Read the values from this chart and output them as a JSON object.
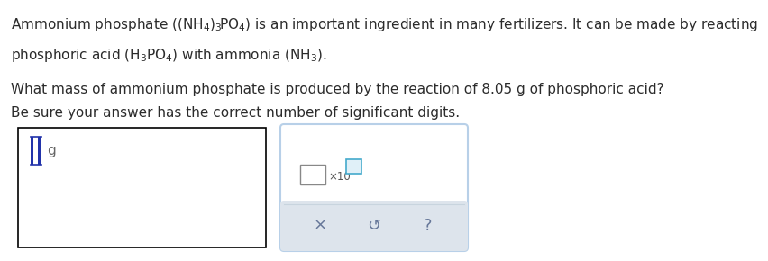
{
  "bg_color": "#ffffff",
  "text_color": "#2b2b2b",
  "font_size_main": 11.0,
  "line1": "Ammonium phosphate $\\left(\\left(\\mathrm{NH_4}\\right)_3\\!\\mathrm{PO_4}\\right)$ is an important ingredient in many fertilizers. It can be made by reacting",
  "line2": "phosphoric acid $\\left(\\mathrm{H_3PO_4}\\right)$ with ammonia $\\left(\\mathrm{NH_3}\\right)$.",
  "line3": "What mass of ammonium phosphate is produced by the reaction of 8.05 g of phosphoric acid?",
  "line4": "Be sure your answer has the correct number of significant digits.",
  "unit_label": "g",
  "input_box_color": "#000000",
  "cursor_color": "#2233aa",
  "right_panel_border": "#b8d0e8",
  "right_panel_bg": "#ffffff",
  "button_row_bg": "#dde4ec",
  "button_color": "#667799",
  "coeff_box_color": "#888888",
  "exp_box_color": "#44aacc",
  "exp_box_fill": "#e0f0f8"
}
